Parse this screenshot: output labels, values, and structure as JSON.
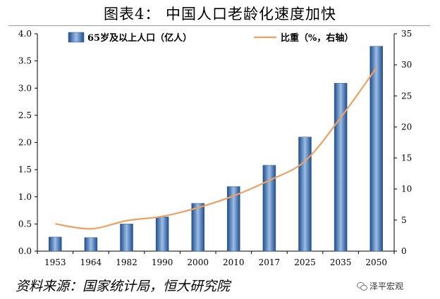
{
  "title": "图表4：  中国人口老龄化速度加快",
  "source": "资料来源：国家统计局，恒大研究院",
  "watermark": "泽平宏观",
  "colors": {
    "bar": "#3e72b5",
    "bar_dark": "#1f4e8c",
    "bar_light": "#8fb3e0",
    "line": "#f0a060"
  },
  "chart_data": {
    "type": "bar",
    "categories": [
      "1953",
      "1964",
      "1982",
      "1990",
      "2000",
      "2010",
      "2017",
      "2025",
      "2035",
      "2050"
    ],
    "series": [
      {
        "name": "65岁及以上人口（亿人）",
        "type": "bar",
        "axis": "left",
        "values": [
          0.26,
          0.25,
          0.5,
          0.63,
          0.88,
          1.19,
          1.58,
          2.1,
          3.09,
          3.77
        ]
      },
      {
        "name": "比重（%，右轴）",
        "type": "line",
        "axis": "right",
        "values": [
          4.4,
          3.6,
          4.9,
          5.6,
          7.0,
          8.9,
          11.4,
          14.5,
          21.5,
          29.5
        ]
      }
    ],
    "ylim_left": [
      0,
      4.0
    ],
    "ylim_right": [
      0,
      35
    ],
    "yticks_left": [
      "0.0",
      "0.5",
      "1.0",
      "1.5",
      "2.0",
      "2.5",
      "3.0",
      "3.5",
      "4.0"
    ],
    "yticks_right": [
      "0",
      "5",
      "10",
      "15",
      "20",
      "25",
      "30",
      "35"
    ],
    "legend_position": "top",
    "grid": false
  }
}
